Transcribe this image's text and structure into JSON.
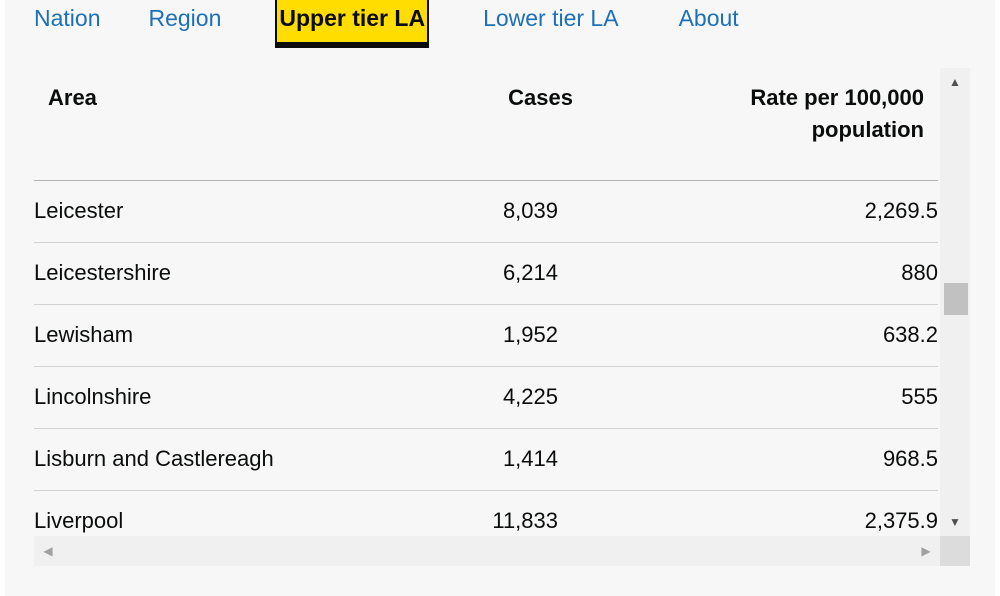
{
  "tabs": [
    {
      "label": "Nation",
      "active": false
    },
    {
      "label": "Region",
      "active": false
    },
    {
      "label": "Upper tier LA",
      "active": true
    },
    {
      "label": "Lower tier LA",
      "active": false
    },
    {
      "label": "About",
      "active": false
    }
  ],
  "table": {
    "headers": {
      "area": "Area",
      "cases": "Cases",
      "rate_line1": "Rate per 100,000",
      "rate_line2": "population"
    },
    "rows": [
      {
        "area": "Leicester",
        "cases": "8,039",
        "rate": "2,269.5"
      },
      {
        "area": "Leicestershire",
        "cases": "6,214",
        "rate": "880"
      },
      {
        "area": "Lewisham",
        "cases": "1,952",
        "rate": "638.2"
      },
      {
        "area": "Lincolnshire",
        "cases": "4,225",
        "rate": "555"
      },
      {
        "area": "Lisburn and Castlereagh",
        "cases": "1,414",
        "rate": "968.5"
      },
      {
        "area": "Liverpool",
        "cases": "11,833",
        "rate": "2,375.9"
      }
    ]
  },
  "colors": {
    "link": "#1d70b8",
    "focus": "#ffdd00",
    "text": "#0b0c0c"
  },
  "icons": {
    "scroll_up": "triangle-up-icon",
    "scroll_down": "triangle-down-icon",
    "scroll_left": "triangle-left-icon",
    "scroll_right": "triangle-right-icon"
  }
}
